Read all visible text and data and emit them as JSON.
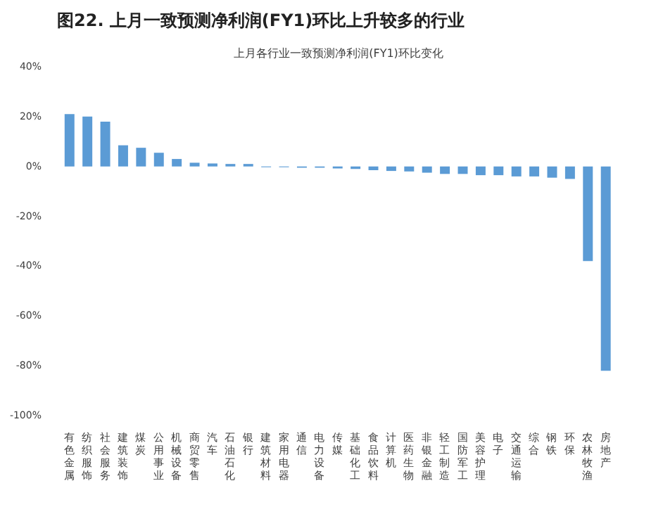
{
  "chart_data": {
    "type": "bar",
    "title": "图22. 上月一致预测净利润(FY1)环比上升较多的行业",
    "subtitle": "上月各行业一致预测净利润(FY1)环比变化",
    "categories": [
      "有色金属",
      "纺织服饰",
      "社会服务",
      "建筑装饰",
      "煤炭",
      "公用事业",
      "机械设备",
      "商贸零售",
      "汽车",
      "石油石化",
      "银行",
      "建筑材料",
      "家用电器",
      "通信",
      "电力设备",
      "传媒",
      "基础化工",
      "食品饮料",
      "计算机",
      "医药生物",
      "非银金融",
      "轻工制造",
      "国防军工",
      "美容护理",
      "电子",
      "交通运输",
      "综合",
      "钢铁",
      "环保",
      "农林牧渔",
      "房地产"
    ],
    "values": [
      21,
      20,
      18,
      8.5,
      7.5,
      5.5,
      3,
      1.5,
      1.2,
      1,
      1,
      -0.3,
      -0.3,
      -0.5,
      -0.5,
      -0.8,
      -1,
      -1.5,
      -1.8,
      -2,
      -2.5,
      -3,
      -3,
      -3.5,
      -3.5,
      -4,
      -4,
      -4.5,
      -5,
      -38,
      -82
    ],
    "color": "#5b9bd5",
    "ylim": [
      -100,
      40
    ],
    "yticks": [
      {
        "value": -100,
        "label": "-100%"
      },
      {
        "value": -80,
        "label": "-80%"
      },
      {
        "value": -60,
        "label": "-60%"
      },
      {
        "value": -40,
        "label": "-40%"
      },
      {
        "value": -20,
        "label": "-20%"
      },
      {
        "value": 0,
        "label": "0%"
      },
      {
        "value": 20,
        "label": "20%"
      },
      {
        "value": 40,
        "label": "40%"
      }
    ],
    "grid": false
  }
}
